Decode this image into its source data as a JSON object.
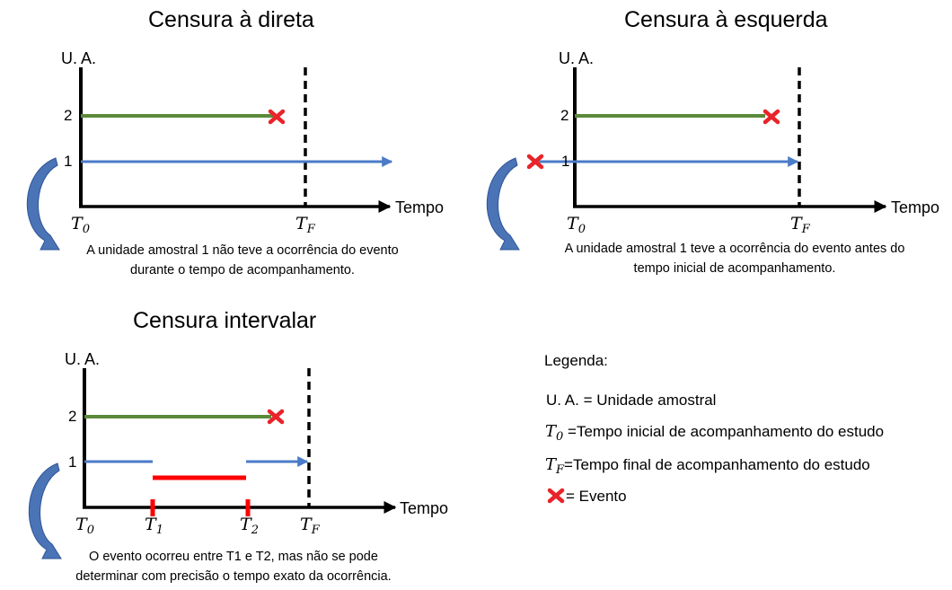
{
  "panels": {
    "direita": {
      "title": "Censura à direta",
      "y_axis_label": "U. A.",
      "y_ticks": [
        "2",
        "1"
      ],
      "x_axis_label": "Tempo",
      "t0": {
        "base": "T",
        "sub": "0"
      },
      "tf": {
        "base": "T",
        "sub": "F"
      },
      "note_line1": "A unidade amostral 1 não teve a ocorrência do evento",
      "note_line2": "durante o tempo de acompanhamento."
    },
    "esquerda": {
      "title": "Censura à esquerda",
      "y_axis_label": "U. A.",
      "y_ticks": [
        "2",
        "1"
      ],
      "x_axis_label": "Tempo",
      "t0": {
        "base": "T",
        "sub": "0"
      },
      "tf": {
        "base": "T",
        "sub": "F"
      },
      "note_line1": "A unidade amostral 1 teve a ocorrência do evento antes do",
      "note_line2": "tempo inicial de acompanhamento."
    },
    "intervalar": {
      "title": "Censura intervalar",
      "y_axis_label": "U. A.",
      "y_ticks": [
        "2",
        "1"
      ],
      "x_axis_label": "Tempo",
      "t0": {
        "base": "T",
        "sub": "0"
      },
      "t1": {
        "base": "T",
        "sub": "1"
      },
      "t2": {
        "base": "T",
        "sub": "2"
      },
      "tf": {
        "base": "T",
        "sub": "F"
      },
      "note_line1": "O evento ocorreu entre T1 e T2, mas não se pode",
      "note_line2": "determinar com precisão o tempo exato da ocorrência."
    }
  },
  "legend": {
    "title": "Legenda:",
    "ua": "U. A. = Unidade amostral",
    "t0_symbol": {
      "base": "T",
      "sub": "0"
    },
    "t0_text": " =Tempo inicial de acompanhamento do estudo",
    "tf_symbol": {
      "base": "T",
      "sub": "F"
    },
    "tf_text": "=Tempo final de acompanhamento do estudo",
    "event_text": " = Evento"
  },
  "colors": {
    "green": "#5b8a3a",
    "blue": "#4a7bc8",
    "red": "#ff0000",
    "marker": "#e8242a",
    "curve_fill": "#4a74b6",
    "axis": "#000000"
  }
}
